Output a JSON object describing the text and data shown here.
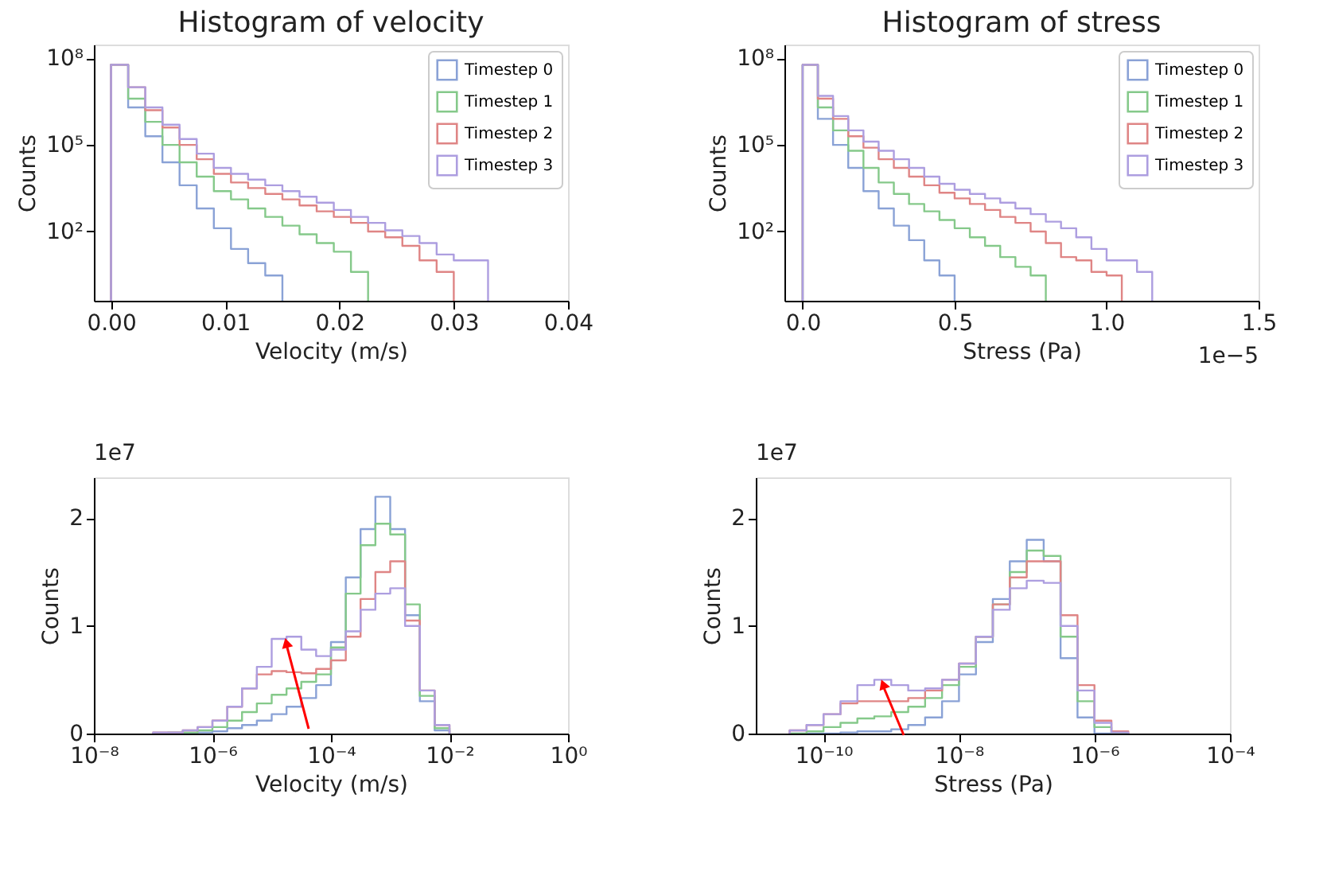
{
  "chart_data": [
    {
      "type": "histogram",
      "title": "Histogram of velocity",
      "xlabel": "Velocity (m/s)",
      "ylabel": "Counts",
      "log": "y",
      "legend": "top right",
      "xlim": [
        -0.0015,
        0.04
      ],
      "xticks": [
        {
          "value": 0,
          "label": "0.00"
        },
        {
          "value": 0.01,
          "label": "0.01"
        },
        {
          "value": 0.02,
          "label": "0.02"
        },
        {
          "value": 0.03,
          "label": "0.03"
        },
        {
          "value": 0.04,
          "label": "0.04"
        }
      ],
      "ylim": [
        0.4,
        300000000.0
      ],
      "yticks": [
        {
          "value": 100,
          "label": "10²"
        },
        {
          "value": 100000,
          "label": "10⁵"
        },
        {
          "value": 100000000,
          "label": "10⁸"
        }
      ],
      "bins": [
        0,
        0.0015,
        0.003,
        0.0045,
        0.006,
        0.0075,
        0.009,
        0.0105,
        0.012,
        0.0135,
        0.015,
        0.0165,
        0.018,
        0.0195,
        0.021,
        0.0225,
        0.024,
        0.0255,
        0.027,
        0.0285,
        0.03,
        0.0315,
        0.033
      ],
      "series": [
        {
          "name": "Timestep 0",
          "color": "#8aa2d6",
          "bins": [
            0,
            0.0015,
            0.003,
            0.0045,
            0.006,
            0.0075,
            0.009,
            0.0105,
            0.012,
            0.0135,
            0.015
          ],
          "values": [
            60000000.0,
            2000000.0,
            200000.0,
            25000,
            4000,
            630,
            130,
            25,
            8,
            3
          ]
        },
        {
          "name": "Timestep 1",
          "color": "#85c98a",
          "bins": [
            0,
            0.0015,
            0.003,
            0.0045,
            0.006,
            0.0075,
            0.009,
            0.0105,
            0.012,
            0.0135,
            0.015,
            0.0165,
            0.018,
            0.0195,
            0.021,
            0.0225
          ],
          "values": [
            60000000.0,
            4000000.0,
            630000,
            100000,
            25000,
            8000,
            2500,
            1300,
            630,
            320,
            160,
            80,
            40,
            20,
            4
          ]
        },
        {
          "name": "Timestep 2",
          "color": "#df8585",
          "bins": [
            0,
            0.0015,
            0.003,
            0.0045,
            0.006,
            0.0075,
            0.009,
            0.0105,
            0.012,
            0.0135,
            0.015,
            0.0165,
            0.018,
            0.0195,
            0.021,
            0.0225,
            0.024,
            0.0255,
            0.027,
            0.0285,
            0.03
          ],
          "values": [
            60000000.0,
            10000000.0,
            1600000.0,
            400000,
            100000,
            32000,
            10000,
            5000,
            3200,
            2000,
            1300,
            800,
            500,
            320,
            200,
            100,
            63,
            32,
            10,
            4
          ]
        },
        {
          "name": "Timestep 3",
          "color": "#ad9ee0",
          "values": [
            60000000.0,
            10000000.0,
            2000000.0,
            500000,
            160000,
            50000,
            16000,
            10000,
            6300,
            4000,
            2500,
            1600,
            1000,
            560,
            320,
            200,
            110,
            70,
            40,
            16,
            10,
            10
          ]
        }
      ]
    },
    {
      "type": "histogram",
      "title": "Histogram of stress",
      "xlabel": "Stress (Pa)",
      "ylabel": "Counts",
      "log": "y",
      "legend": "top right",
      "annotations": [
        "1e−5"
      ],
      "xlim": [
        -0.06,
        1.5
      ],
      "xticks": [
        {
          "value": 0,
          "label": "0.0"
        },
        {
          "value": 0.5,
          "label": "0.5"
        },
        {
          "value": 1,
          "label": "1.0"
        },
        {
          "value": 1.5,
          "label": "1.5"
        }
      ],
      "ylim": [
        0.4,
        300000000.0
      ],
      "yticks": [
        {
          "value": 100,
          "label": "10²"
        },
        {
          "value": 100000,
          "label": "10⁵"
        },
        {
          "value": 100000000,
          "label": "10⁸"
        }
      ],
      "bins": [
        0,
        0.05,
        0.1,
        0.15,
        0.2,
        0.25,
        0.3,
        0.35,
        0.4,
        0.45,
        0.5,
        0.55,
        0.6,
        0.65,
        0.7,
        0.75,
        0.8,
        0.85,
        0.9,
        0.95,
        1.0,
        1.05,
        1.1,
        1.15
      ],
      "series": [
        {
          "name": "Timestep 0",
          "color": "#8aa2d6",
          "bins": [
            0,
            0.05,
            0.1,
            0.15,
            0.2,
            0.25,
            0.3,
            0.35,
            0.4,
            0.45,
            0.5
          ],
          "values": [
            60000000.0,
            800000,
            100000,
            16000,
            2500,
            630,
            160,
            50,
            10,
            3
          ]
        },
        {
          "name": "Timestep 1",
          "color": "#85c98a",
          "bins": [
            0,
            0.05,
            0.1,
            0.15,
            0.2,
            0.25,
            0.3,
            0.35,
            0.4,
            0.45,
            0.5,
            0.55,
            0.6,
            0.65,
            0.7,
            0.75,
            0.8
          ],
          "values": [
            60000000.0,
            2000000.0,
            320000,
            63000,
            16000,
            5000,
            2000,
            900,
            500,
            250,
            130,
            63,
            32,
            13,
            6,
            3
          ]
        },
        {
          "name": "Timestep 2",
          "color": "#df8585",
          "bins": [
            0,
            0.05,
            0.1,
            0.15,
            0.2,
            0.25,
            0.3,
            0.35,
            0.4,
            0.45,
            0.5,
            0.55,
            0.6,
            0.65,
            0.7,
            0.75,
            0.8,
            0.85,
            0.9,
            0.95,
            1.0,
            1.05
          ],
          "values": [
            60000000.0,
            4000000.0,
            800000,
            200000,
            80000,
            32000,
            16000,
            8000,
            4000,
            2200,
            1400,
            900,
            560,
            320,
            200,
            100,
            40,
            13,
            10,
            4,
            3
          ]
        },
        {
          "name": "Timestep 3",
          "color": "#ad9ee0",
          "values": [
            60000000.0,
            5000000.0,
            1000000.0,
            320000,
            130000,
            63000,
            32000,
            16000,
            8000,
            4500,
            2800,
            2000,
            1400,
            1000,
            630,
            400,
            220,
            130,
            63,
            25,
            10,
            10,
            4
          ]
        }
      ]
    },
    {
      "type": "histogram",
      "xlabel": "Velocity (m/s)",
      "ylabel": "Counts",
      "log": "x",
      "annotations": [
        "1e7"
      ],
      "xlim": [
        1e-08,
        1
      ],
      "xticks": [
        {
          "value": 1e-08,
          "label": "10⁻⁸"
        },
        {
          "value": 1e-06,
          "label": "10⁻⁶"
        },
        {
          "value": 0.0001,
          "label": "10⁻⁴"
        },
        {
          "value": 0.01,
          "label": "10⁻²"
        },
        {
          "value": 1,
          "label": "10⁰"
        }
      ],
      "ylim": [
        0,
        2.38
      ],
      "yticks": [
        0,
        1,
        2
      ],
      "bins": [
        1e-07,
        1.78e-07,
        3.16e-07,
        5.62e-07,
        1e-06,
        1.78e-06,
        3.16e-06,
        5.62e-06,
        1e-05,
        1.78e-05,
        3.16e-05,
        5.62e-05,
        0.0001,
        0.000178,
        0.000316,
        0.000562,
        0.001,
        0.00178,
        0.00316,
        0.00562,
        0.01
      ],
      "series": [
        {
          "color": "#8aa2d6",
          "values": [
            0,
            0,
            0,
            0.01,
            0.02,
            0.05,
            0.08,
            0.12,
            0.18,
            0.25,
            0.33,
            0.45,
            0.85,
            1.45,
            1.9,
            2.2,
            1.9,
            1.1,
            0.3,
            0.03
          ]
        },
        {
          "color": "#85c98a",
          "values": [
            0,
            0.01,
            0.01,
            0.03,
            0.06,
            0.12,
            0.2,
            0.28,
            0.36,
            0.42,
            0.48,
            0.55,
            0.8,
            1.3,
            1.75,
            1.95,
            1.85,
            1.2,
            0.35,
            0.05
          ]
        },
        {
          "color": "#df8585",
          "values": [
            0.01,
            0.01,
            0.03,
            0.06,
            0.12,
            0.25,
            0.42,
            0.55,
            0.58,
            0.57,
            0.56,
            0.6,
            0.68,
            0.9,
            1.25,
            1.5,
            1.6,
            1.05,
            0.4,
            0.08
          ]
        },
        {
          "color": "#ad9ee0",
          "values": [
            0.01,
            0.01,
            0.03,
            0.06,
            0.12,
            0.25,
            0.42,
            0.62,
            0.88,
            0.9,
            0.78,
            0.72,
            0.78,
            0.95,
            1.15,
            1.3,
            1.35,
            1.0,
            0.4,
            0.08
          ]
        }
      ]
    },
    {
      "type": "histogram",
      "xlabel": "Stress (Pa)",
      "ylabel": "Counts",
      "log": "x",
      "annotations": [
        "1e7"
      ],
      "xlim": [
        1e-11,
        0.0001
      ],
      "xticks": [
        {
          "value": 1e-10,
          "label": "10⁻¹⁰"
        },
        {
          "value": 1e-08,
          "label": "10⁻⁸"
        },
        {
          "value": 1e-06,
          "label": "10⁻⁶"
        },
        {
          "value": 0.0001,
          "label": "10⁻⁴"
        }
      ],
      "ylim": [
        0,
        2.38
      ],
      "yticks": [
        0,
        1,
        2
      ],
      "bins": [
        3.16e-11,
        5.62e-11,
        1e-10,
        1.78e-10,
        3.16e-10,
        5.62e-10,
        1e-09,
        1.78e-09,
        3.16e-09,
        5.62e-09,
        1e-08,
        1.78e-08,
        3.16e-08,
        5.62e-08,
        1e-07,
        1.78e-07,
        3.16e-07,
        5.62e-07,
        1e-06,
        1.78e-06,
        3.16e-06
      ],
      "series": [
        {
          "color": "#8aa2d6",
          "values": [
            0,
            0,
            0,
            0.01,
            0.02,
            0.02,
            0.04,
            0.08,
            0.15,
            0.3,
            0.55,
            0.85,
            1.25,
            1.6,
            1.8,
            1.6,
            0.7,
            0.15,
            0,
            0
          ]
        },
        {
          "color": "#85c98a",
          "values": [
            0,
            0.02,
            0.06,
            0.1,
            0.14,
            0.16,
            0.2,
            0.25,
            0.33,
            0.45,
            0.62,
            0.9,
            1.2,
            1.5,
            1.7,
            1.65,
            0.9,
            0.3,
            0.06,
            0
          ]
        },
        {
          "color": "#df8585",
          "values": [
            0.03,
            0.08,
            0.18,
            0.28,
            0.3,
            0.3,
            0.3,
            0.33,
            0.4,
            0.5,
            0.65,
            0.9,
            1.2,
            1.45,
            1.6,
            1.6,
            1.1,
            0.45,
            0.12,
            0.02
          ]
        },
        {
          "color": "#ad9ee0",
          "values": [
            0.03,
            0.08,
            0.18,
            0.3,
            0.45,
            0.5,
            0.45,
            0.4,
            0.42,
            0.5,
            0.65,
            0.9,
            1.15,
            1.35,
            1.42,
            1.4,
            1.0,
            0.4,
            0.1,
            0.01
          ]
        }
      ]
    }
  ]
}
